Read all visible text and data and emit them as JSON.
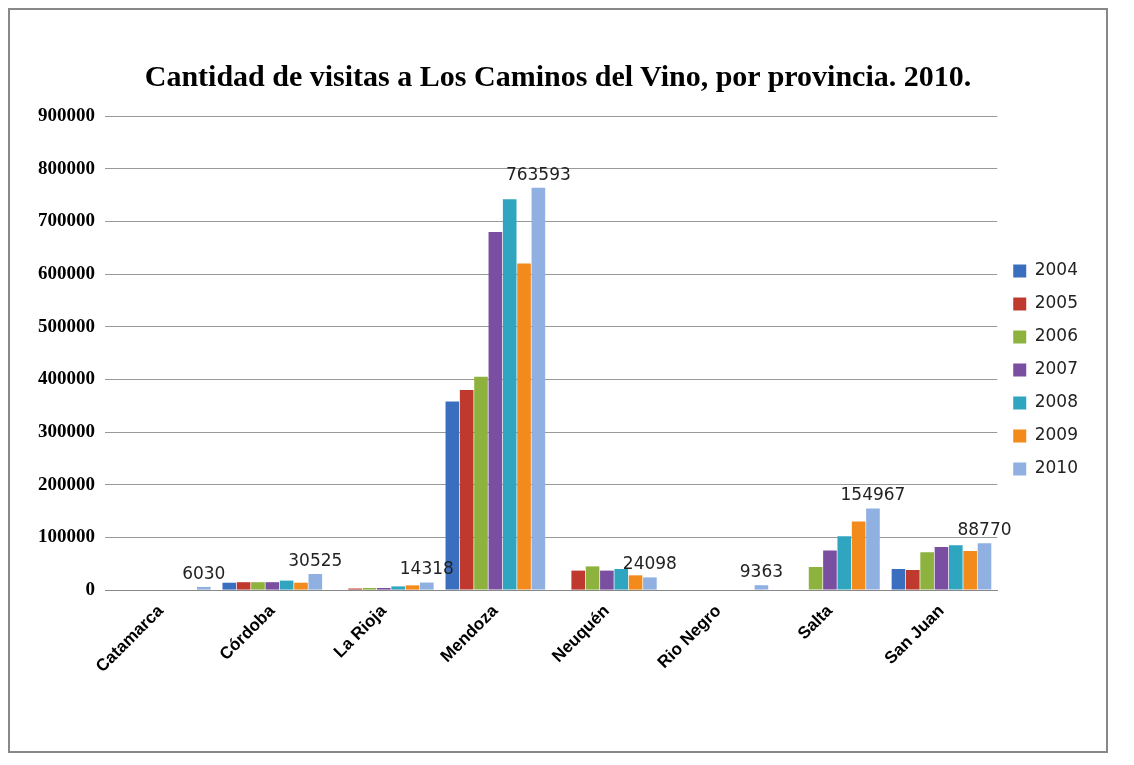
{
  "chart_data": {
    "type": "bar",
    "title": "Cantidad de visitas a Los Caminos del Vino, por provincia. 2010.",
    "categories": [
      "Catamarca",
      "Córdoba",
      "La Rioja",
      "Mendoza",
      "Neuquén",
      "Rio Negro",
      "Salta",
      "San Juan"
    ],
    "series": [
      {
        "name": "2004",
        "color": "#3a6fbf",
        "values": [
          0,
          14000,
          0,
          358000,
          1000,
          0,
          null,
          40000
        ]
      },
      {
        "name": "2005",
        "color": "#c0392f",
        "values": [
          0,
          15000,
          3000,
          380000,
          37000,
          0,
          null,
          38000
        ]
      },
      {
        "name": "2006",
        "color": "#8db23d",
        "values": [
          0,
          15000,
          4000,
          405000,
          45000,
          1000,
          44000,
          72000
        ]
      },
      {
        "name": "2007",
        "color": "#7a4ea0",
        "values": [
          1000,
          15000,
          4000,
          680000,
          37000,
          1000,
          75000,
          82000
        ]
      },
      {
        "name": "2008",
        "color": "#2fa5c0",
        "values": [
          1000,
          18000,
          7000,
          742000,
          40000,
          1000,
          102000,
          85000
        ]
      },
      {
        "name": "2009",
        "color": "#f28a1c",
        "values": [
          1000,
          14000,
          9000,
          620000,
          28000,
          1000,
          130000,
          74000
        ]
      },
      {
        "name": "2010",
        "color": "#8fb0e0",
        "values": [
          6030,
          30525,
          14318,
          763593,
          24098,
          9363,
          154967,
          88770
        ],
        "value_labels": [
          "6030",
          "30525",
          "14318",
          "763593",
          "24098",
          "9363",
          "154967",
          "88770"
        ]
      }
    ],
    "ylim": [
      0,
      900000
    ],
    "yticks": [
      0,
      100000,
      200000,
      300000,
      400000,
      500000,
      600000,
      700000,
      800000,
      900000
    ],
    "grid": "y",
    "legend": "right"
  }
}
